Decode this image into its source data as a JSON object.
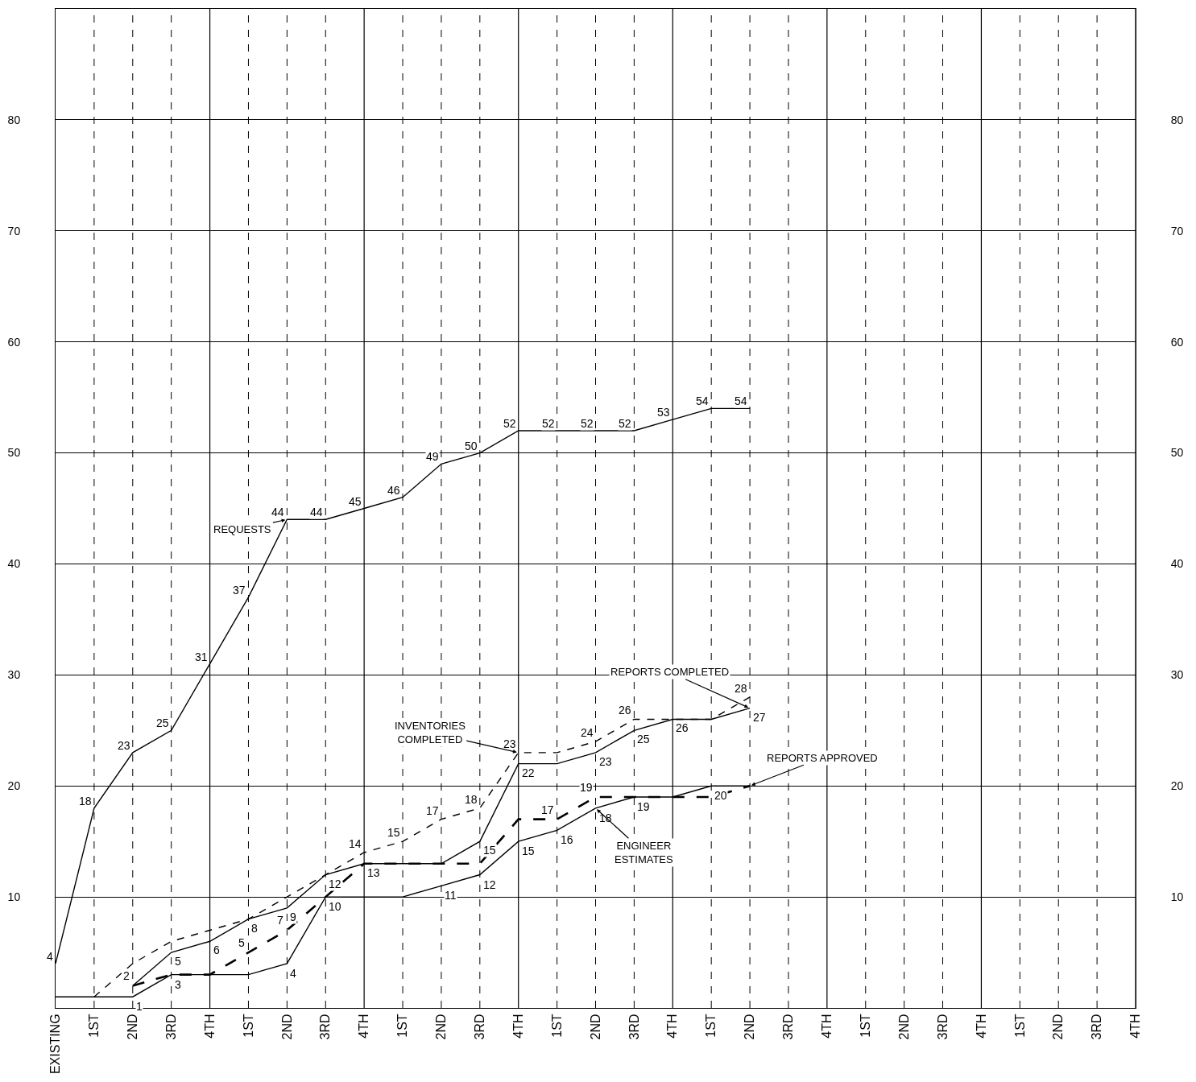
{
  "chart_data": {
    "type": "line",
    "categories": [
      "EXISTING",
      "1ST",
      "2ND",
      "3RD",
      "4TH",
      "1ST",
      "2ND",
      "3RD",
      "4TH",
      "1ST",
      "2ND",
      "3RD",
      "4TH",
      "1ST",
      "2ND",
      "3RD",
      "4TH",
      "1ST",
      "2ND",
      "3RD",
      "4TH",
      "1ST",
      "2ND",
      "3RD",
      "4TH",
      "1ST",
      "2ND",
      "3RD",
      "4TH"
    ],
    "series": [
      {
        "name": "REQUESTS",
        "color": "#000000",
        "line_style": "solid",
        "values": [
          4,
          18,
          23,
          25,
          31,
          37,
          44,
          44,
          45,
          46,
          49,
          50,
          52,
          52,
          52,
          52,
          53,
          54,
          54,
          null,
          null,
          null,
          null,
          null,
          null,
          null,
          null,
          null,
          null
        ],
        "value_labels": [
          "4",
          "18",
          "23",
          "25",
          "31",
          "37",
          "44",
          "44",
          "45",
          "46",
          "49",
          "50",
          "52",
          "52",
          "52",
          "52",
          "53",
          "54",
          "54",
          null,
          null,
          null,
          null,
          null,
          null,
          null,
          null,
          null,
          null
        ]
      },
      {
        "name": "INVENTORIES COMPLETED",
        "color": "#000000",
        "line_style": "dotted",
        "values": [
          null,
          1,
          4,
          6,
          7,
          8,
          10,
          12,
          14,
          15,
          17,
          18,
          23,
          23,
          24,
          26,
          26,
          26,
          28,
          null,
          null,
          null,
          null,
          null,
          null,
          null,
          null,
          null,
          null
        ],
        "value_labels": [
          null,
          null,
          null,
          null,
          null,
          null,
          null,
          null,
          "14",
          "15",
          "17",
          "18",
          "23",
          null,
          "24",
          "26",
          null,
          null,
          "28",
          null,
          null,
          null,
          null,
          null,
          null,
          null,
          null,
          null,
          null
        ]
      },
      {
        "name": "REPORTS COMPLETED",
        "color": "#000000",
        "line_style": "solid",
        "values": [
          null,
          null,
          2,
          5,
          6,
          8,
          9,
          12,
          13,
          13,
          13,
          15,
          22,
          22,
          23,
          25,
          26,
          26,
          27,
          null,
          null,
          null,
          null,
          null,
          null,
          null,
          null,
          null,
          null
        ],
        "value_labels": [
          null,
          null,
          null,
          "5",
          "6",
          "8",
          "9",
          "12",
          "13",
          null,
          null,
          "15",
          "22",
          null,
          "23",
          "25",
          "26",
          null,
          "27",
          null,
          null,
          null,
          null,
          null,
          null,
          null,
          null,
          null,
          null
        ]
      },
      {
        "name": "REPORTS APPROVED",
        "color": "#000000",
        "line_style": "dashed",
        "values": [
          null,
          null,
          2,
          3,
          3,
          5,
          7,
          10,
          13,
          13,
          13,
          13,
          17,
          17,
          19,
          19,
          19,
          19,
          20,
          null,
          null,
          null,
          null,
          null,
          null,
          null,
          null,
          null,
          null
        ],
        "value_labels": [
          null,
          null,
          "2",
          null,
          null,
          "5",
          "7",
          null,
          null,
          null,
          null,
          null,
          null,
          "17",
          "19",
          null,
          null,
          null,
          null,
          null,
          null,
          null,
          null,
          null,
          null,
          null,
          null,
          null,
          null
        ]
      },
      {
        "name": "ENGINEER ESTIMATES",
        "color": "#000000",
        "line_style": "solid",
        "values": [
          1,
          1,
          1,
          3,
          3,
          3,
          4,
          10,
          10,
          10,
          11,
          12,
          15,
          16,
          18,
          19,
          19,
          20,
          20,
          null,
          null,
          null,
          null,
          null,
          null,
          null,
          null,
          null,
          null
        ],
        "value_labels": [
          null,
          null,
          "1",
          "3",
          null,
          null,
          "4",
          "10",
          null,
          null,
          "11",
          "12",
          "15",
          "16",
          "18",
          "19",
          null,
          "20",
          null,
          null,
          null,
          null,
          null,
          null,
          null,
          null,
          null,
          null,
          null
        ]
      }
    ],
    "ylim": [
      0,
      90
    ],
    "yticks": [
      10,
      20,
      30,
      40,
      50,
      60,
      70,
      80
    ],
    "y2lim": [
      0,
      90
    ],
    "y2ticks": [
      10,
      20,
      30,
      40,
      50,
      60,
      70,
      80
    ],
    "grid": true,
    "legend": false
  }
}
